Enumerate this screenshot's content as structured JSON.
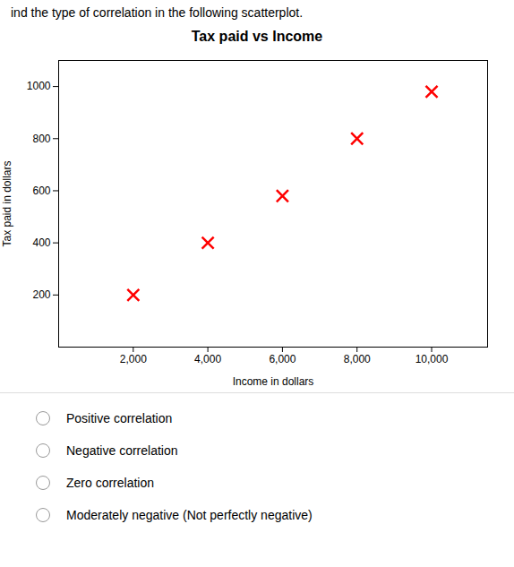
{
  "chart_data": {
    "type": "scatter",
    "title": "Tax paid vs Income",
    "xlabel": "Income in dollars",
    "ylabel": "Tax paid in dollars",
    "x": [
      2000,
      4000,
      6000,
      8000,
      10000
    ],
    "values": [
      200,
      400,
      580,
      800,
      980
    ],
    "color": "#ff0000",
    "marker": "x",
    "xlim": [
      0,
      11500
    ],
    "ylim": [
      0,
      1100
    ],
    "xticks": [
      {
        "value": 2000,
        "label": "2,000"
      },
      {
        "value": 4000,
        "label": "4,000"
      },
      {
        "value": 6000,
        "label": "6,000"
      },
      {
        "value": 8000,
        "label": "8,000"
      },
      {
        "value": 10000,
        "label": "10,000"
      }
    ],
    "yticks": [
      200,
      400,
      600,
      800,
      1000
    ],
    "grid": false,
    "annotations": [
      "ind the type of correlation in the following scatterplot.",
      "Positive correlation",
      "Negative correlation",
      "Zero correlation",
      "Moderately negative (Not perfectly negative)"
    ]
  }
}
